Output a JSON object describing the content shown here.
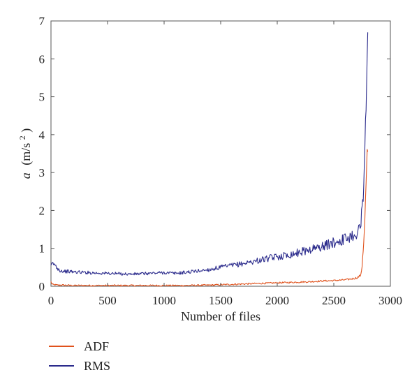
{
  "chart_data": {
    "type": "line",
    "xlabel": "Number of files",
    "ylabel_main": "a",
    "ylabel_unit": "(m/s",
    "ylabel_sup": "2",
    "ylabel_close": ")",
    "xlim": [
      0,
      3000
    ],
    "ylim": [
      0,
      7
    ],
    "xticks": [
      0,
      500,
      1000,
      1500,
      2000,
      2500,
      3000
    ],
    "yticks": [
      0,
      1,
      2,
      3,
      4,
      5,
      6,
      7
    ],
    "grid": false,
    "legend_position": "bottom-left, below plot",
    "series": [
      {
        "name": "ADF",
        "color": "#e0521c",
        "x": [
          0,
          10,
          30,
          60,
          100,
          200,
          400,
          600,
          800,
          1000,
          1200,
          1400,
          1500,
          1600,
          1700,
          1800,
          1900,
          2000,
          2100,
          2200,
          2300,
          2400,
          2500,
          2600,
          2650,
          2700,
          2720,
          2740,
          2750,
          2760,
          2770,
          2780,
          2790,
          2800
        ],
        "y": [
          0.12,
          0.05,
          0.04,
          0.03,
          0.03,
          0.02,
          0.02,
          0.02,
          0.02,
          0.02,
          0.02,
          0.03,
          0.04,
          0.05,
          0.06,
          0.07,
          0.08,
          0.09,
          0.1,
          0.11,
          0.12,
          0.14,
          0.15,
          0.17,
          0.19,
          0.22,
          0.25,
          0.3,
          0.55,
          1.0,
          1.4,
          2.2,
          3.0,
          3.55
        ]
      },
      {
        "name": "RMS",
        "color": "#2b2b8c",
        "x": [
          0,
          10,
          30,
          50,
          80,
          100,
          200,
          400,
          600,
          700,
          800,
          1000,
          1100,
          1200,
          1400,
          1500,
          1600,
          1700,
          1800,
          1900,
          2000,
          2100,
          2200,
          2300,
          2400,
          2500,
          2600,
          2650,
          2700,
          2720,
          2740,
          2750,
          2760,
          2770,
          2780,
          2790,
          2800
        ],
        "y": [
          0.5,
          0.6,
          0.58,
          0.5,
          0.42,
          0.4,
          0.38,
          0.35,
          0.33,
          0.32,
          0.33,
          0.36,
          0.34,
          0.37,
          0.44,
          0.5,
          0.55,
          0.6,
          0.66,
          0.72,
          0.78,
          0.83,
          0.9,
          0.98,
          1.05,
          1.15,
          1.25,
          1.32,
          1.4,
          1.5,
          1.55,
          2.2,
          2.5,
          3.3,
          4.2,
          5.5,
          6.7
        ]
      }
    ]
  }
}
